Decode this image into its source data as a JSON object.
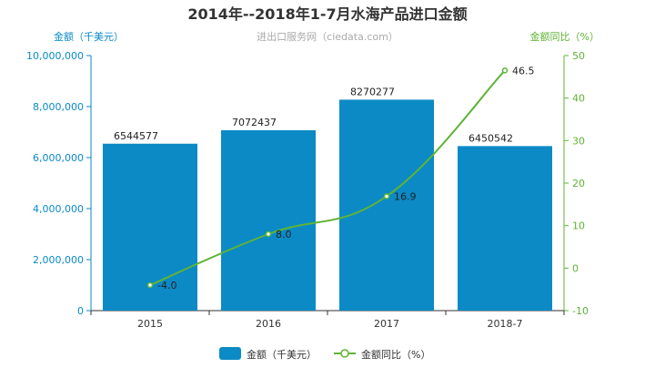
{
  "chart_data": {
    "type": "bar",
    "title": "2014年--2018年1-7月水海产品进口金额",
    "subtitle": "进出口服务网（ciedata.com）",
    "categories": [
      "2015",
      "2016",
      "2017",
      "2018-7"
    ],
    "series": [
      {
        "name": "金额（千美元）",
        "type": "bar",
        "axis": "left",
        "values": [
          6544577,
          7072437,
          8270277,
          6450542
        ],
        "labels": [
          "6544577",
          "7072437",
          "8270277",
          "6450542"
        ],
        "color": "#0b8ac6"
      },
      {
        "name": "金额同比（%）",
        "type": "line",
        "axis": "right",
        "values": [
          -4.0,
          8.0,
          16.9,
          46.5
        ],
        "labels": [
          "-4.0",
          "8.0",
          "16.9",
          "46.5"
        ],
        "color": "#5fb336"
      }
    ],
    "ylabel_left": "金额（千美元）",
    "ylabel_right": "金额同比（%）",
    "ylim_left": [
      0,
      10000000
    ],
    "ylim_right": [
      -10,
      50
    ],
    "yticks_left": [
      "0",
      "2,000,000",
      "4,000,000",
      "6,000,000",
      "8,000,000",
      "10,000,000"
    ],
    "yticks_right": [
      "-10",
      "0",
      "10",
      "20",
      "30",
      "40",
      "50"
    ],
    "legend_position": "bottom-center",
    "grid": false
  }
}
